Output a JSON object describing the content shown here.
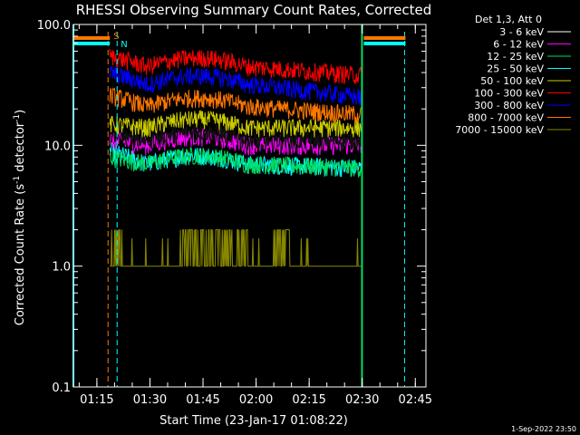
{
  "chart_data": {
    "type": "line",
    "title": "RHESSI Observing Summary Count Rates, Corrected",
    "xlabel": "Start Time (23-Jan-17 01:08:22)",
    "ylabel": "Corrected Count Rate (s",
    "ylabel_sup": "-1",
    "ylabel_tail": " detector",
    "ylabel_sup2": "-1",
    "ylabel_end": ")",
    "yscale": "log",
    "ylim": [
      0.1,
      100.0
    ],
    "xlim": [
      "01:08:22",
      "02:48:00"
    ],
    "x_ticks": [
      "01:15",
      "01:30",
      "01:45",
      "02:00",
      "02:15",
      "02:30",
      "02:45"
    ],
    "y_ticks": [
      "0.1",
      "1.0",
      "10.0",
      "100.0"
    ],
    "legend_title": "Det 1,3, Att 0",
    "legend_position": "top-right",
    "flags": {
      "s_label": "S",
      "n_label": "N"
    },
    "footer_date": "1-Sep-2022 23:50",
    "data_start": "01:18:40",
    "data_end": "02:29:40",
    "series": [
      {
        "name": "3 - 6 keV",
        "color": "#000000",
        "baseline": 13,
        "mid": 11,
        "end": 11
      },
      {
        "name": "6 - 12 keV",
        "color": "#ff00ff",
        "baseline": 11,
        "mid": 10,
        "end": 10
      },
      {
        "name": "12 - 25 keV",
        "color": "#00dd66",
        "baseline": 8,
        "mid": 7,
        "end": 6.5
      },
      {
        "name": "25 - 50 keV",
        "color": "#00ffff",
        "baseline": 9,
        "mid": 7,
        "end": 6.5
      },
      {
        "name": "50 - 100 keV",
        "color": "#cccc00",
        "baseline": 15,
        "mid": 14,
        "end": 14
      },
      {
        "name": "100 - 300 keV",
        "color": "#ff0000",
        "baseline": 55,
        "mid": 45,
        "end": 38
      },
      {
        "name": "300 - 800 keV",
        "color": "#0000ff",
        "baseline": 40,
        "mid": 32,
        "end": 25
      },
      {
        "name": "800 - 7000 keV",
        "color": "#ff7700",
        "baseline": 26,
        "mid": 21,
        "end": 18
      },
      {
        "name": "7000 - 15000 keV",
        "color": "#888800",
        "baseline": 1.0,
        "mid": 1.0,
        "end": 1.0
      }
    ]
  }
}
